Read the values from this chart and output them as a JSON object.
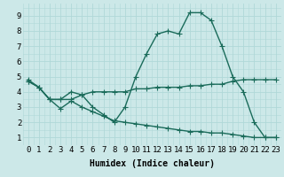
{
  "series": [
    {
      "x": [
        0,
        1,
        2,
        3,
        4,
        5,
        6,
        7,
        8,
        9,
        10,
        11,
        12,
        13,
        14,
        15,
        16,
        17,
        18,
        19,
        20,
        21,
        22,
        23
      ],
      "y": [
        4.8,
        4.3,
        3.5,
        3.5,
        4.0,
        3.8,
        3.0,
        2.5,
        2.0,
        3.0,
        5.0,
        6.5,
        7.8,
        8.0,
        7.8,
        9.2,
        9.2,
        8.7,
        7.0,
        5.0,
        4.0,
        2.0,
        1.0,
        1.0
      ]
    },
    {
      "x": [
        0,
        1,
        2,
        3,
        4,
        5,
        6,
        7,
        8,
        9,
        10,
        11,
        12,
        13,
        14,
        15,
        16,
        17,
        18,
        19,
        20,
        21,
        22,
        23
      ],
      "y": [
        4.7,
        4.3,
        3.5,
        3.5,
        3.5,
        3.8,
        4.0,
        4.0,
        4.0,
        4.0,
        4.2,
        4.2,
        4.3,
        4.3,
        4.3,
        4.4,
        4.4,
        4.5,
        4.5,
        4.7,
        4.8,
        4.8,
        4.8,
        4.8
      ]
    },
    {
      "x": [
        0,
        1,
        2,
        3,
        4,
        5,
        6,
        7,
        8,
        9,
        10,
        11,
        12,
        13,
        14,
        15,
        16,
        17,
        18,
        19,
        20,
        21,
        22,
        23
      ],
      "y": [
        4.7,
        4.3,
        3.5,
        2.9,
        3.4,
        3.0,
        2.7,
        2.4,
        2.1,
        2.0,
        1.9,
        1.8,
        1.7,
        1.6,
        1.5,
        1.4,
        1.4,
        1.3,
        1.3,
        1.2,
        1.1,
        1.0,
        1.0,
        1.0
      ]
    }
  ],
  "xlim": [
    -0.5,
    23.5
  ],
  "ylim": [
    0.5,
    9.8
  ],
  "xticks": [
    0,
    1,
    2,
    3,
    4,
    5,
    6,
    7,
    8,
    9,
    10,
    11,
    12,
    13,
    14,
    15,
    16,
    17,
    18,
    19,
    20,
    21,
    22,
    23
  ],
  "yticks": [
    1,
    2,
    3,
    4,
    5,
    6,
    7,
    8,
    9
  ],
  "xlabel": "Humidex (Indice chaleur)",
  "bg_color": "#cce8e8",
  "grid_color": "#b0d8d8",
  "line_color": "#1a6b5a",
  "marker": "+",
  "markersize": 4,
  "linewidth": 1.0,
  "xlabel_fontsize": 7,
  "tick_fontsize": 6.5
}
